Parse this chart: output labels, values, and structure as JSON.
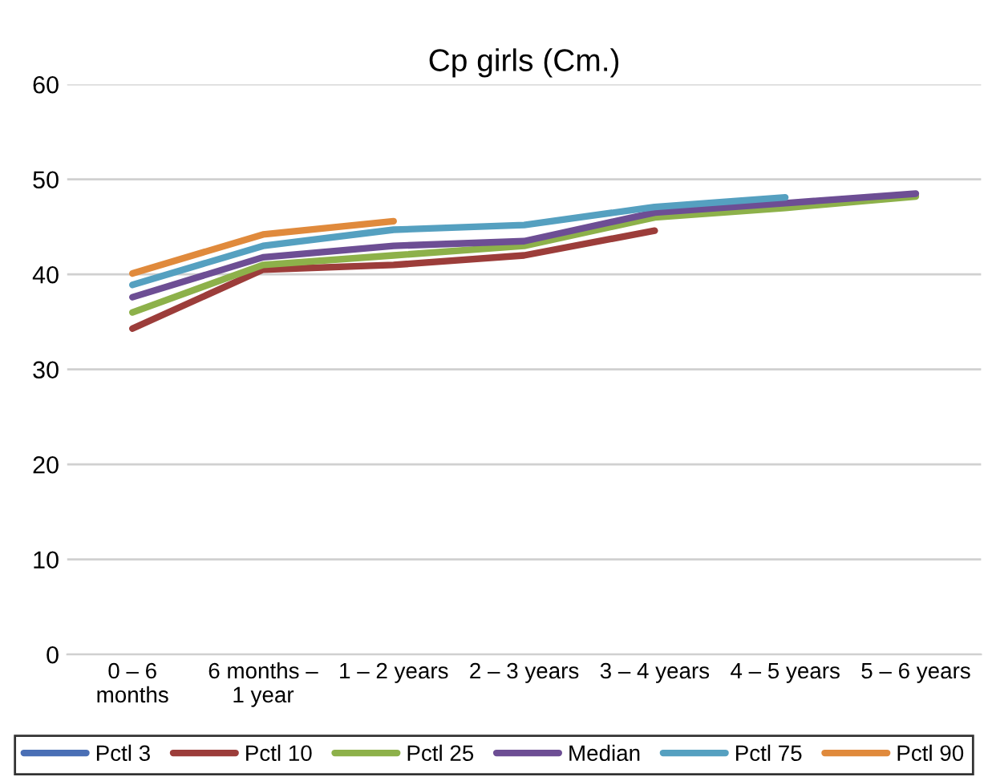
{
  "chart_data": {
    "type": "line",
    "title": "Cp girls (Cm.)",
    "categories": [
      "0 – 6 months",
      "6 months – 1 year",
      "1 – 2 years",
      "2 – 3 years",
      "3 – 4 years",
      "4 – 5 years",
      "5 – 6 years"
    ],
    "series": [
      {
        "name": "Pctl 3",
        "color": "#4a6fb5",
        "values": [
          null,
          null,
          null,
          null,
          null,
          null,
          null
        ]
      },
      {
        "name": "Pctl 10",
        "color": "#9c3d3a",
        "values": [
          34.3,
          40.5,
          41.0,
          42.0,
          44.6,
          null,
          null
        ]
      },
      {
        "name": "Pctl 25",
        "color": "#8db14a",
        "values": [
          36.0,
          41.0,
          42.0,
          43.0,
          46.0,
          47.0,
          48.2
        ]
      },
      {
        "name": "Median",
        "color": "#6d4e94",
        "values": [
          37.6,
          41.8,
          43.0,
          43.5,
          46.5,
          47.5,
          48.5
        ]
      },
      {
        "name": "Pctl 75",
        "color": "#55a0c0",
        "values": [
          38.9,
          43.0,
          44.7,
          45.2,
          47.1,
          48.1,
          null
        ]
      },
      {
        "name": "Pctl 90",
        "color": "#e08a3c",
        "values": [
          40.1,
          44.2,
          45.6,
          null,
          null,
          null,
          null
        ]
      }
    ],
    "ylim": [
      0,
      60
    ],
    "yticks": [
      0,
      10,
      20,
      30,
      40,
      50,
      60
    ],
    "grid": "y",
    "legend": "bottom",
    "marker": "none",
    "line_style": "solid"
  }
}
